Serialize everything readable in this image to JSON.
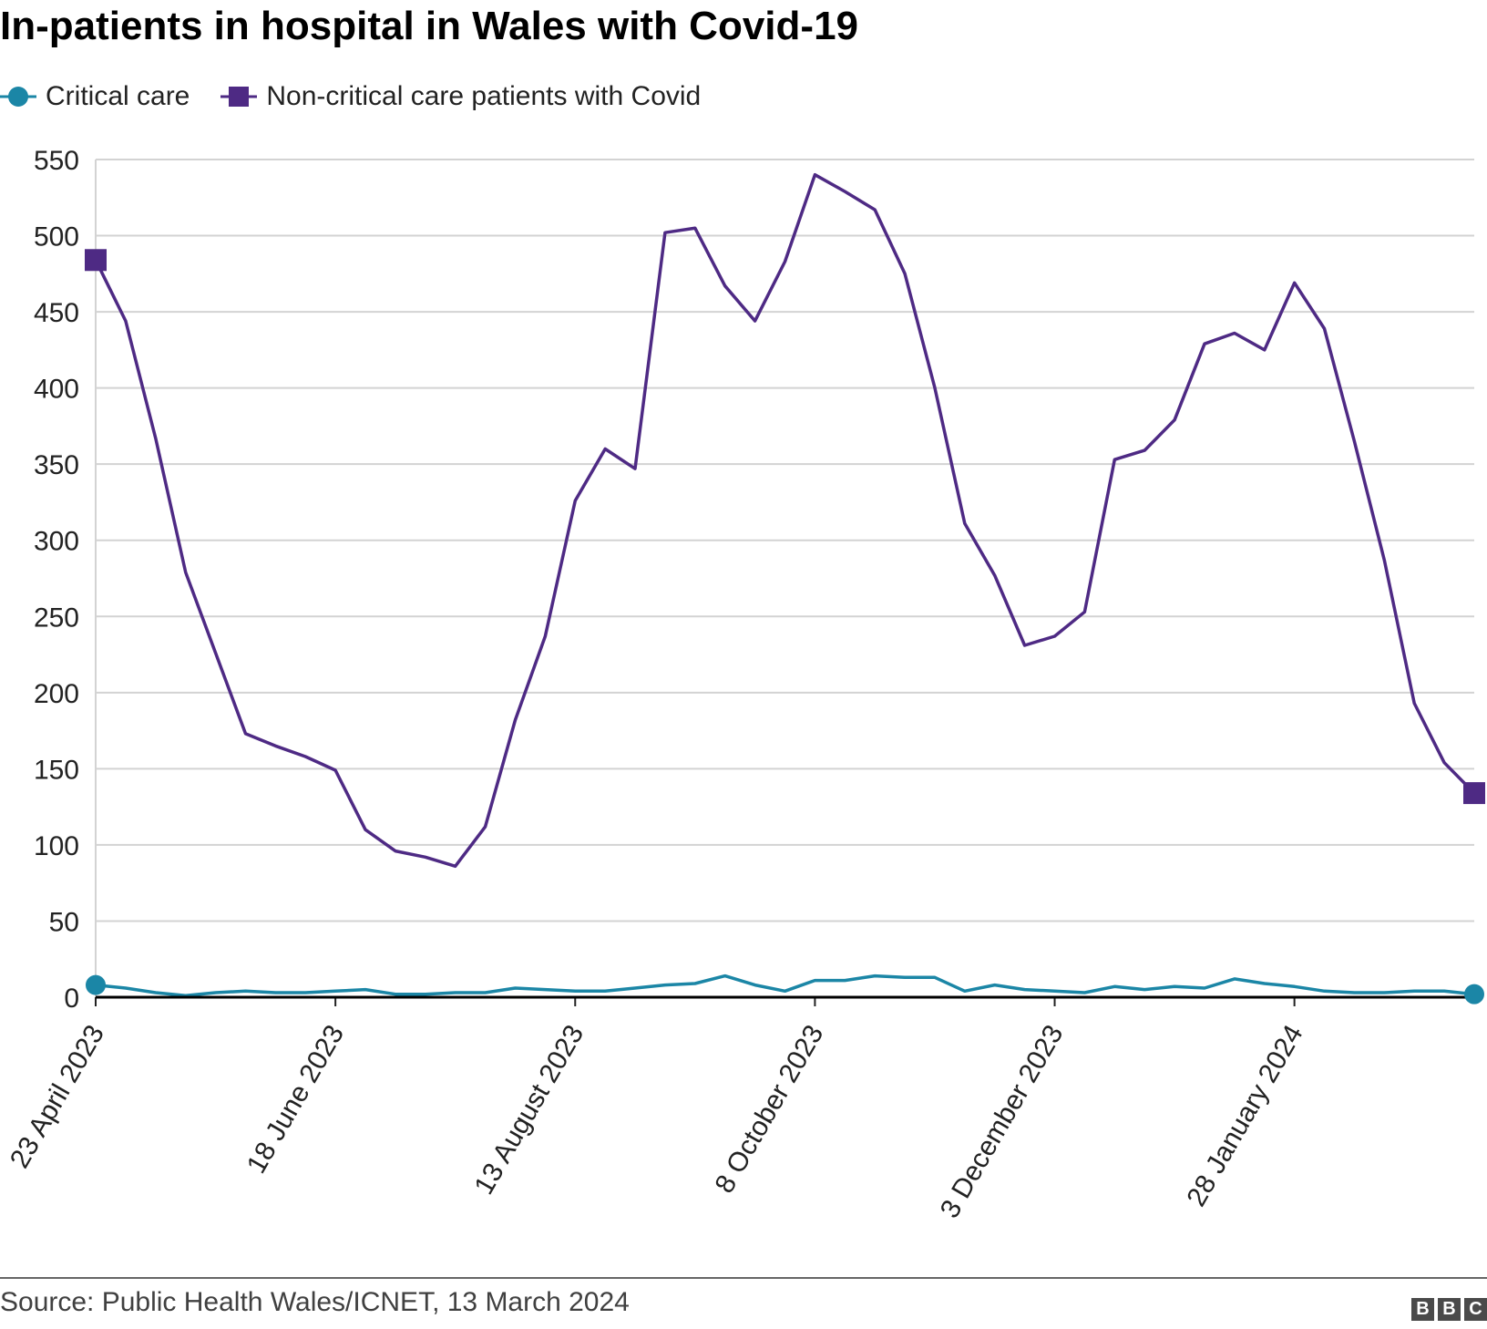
{
  "title": "In-patients in hospital in Wales with Covid-19",
  "legend": {
    "critical_label": "Critical care",
    "noncritical_label": "Non-critical care patients with Covid"
  },
  "source": "Source: Public Health Wales/ICNET, 13 March 2024",
  "logo": {
    "letters": [
      "B",
      "B",
      "C"
    ]
  },
  "chart_data": {
    "type": "line",
    "title": "In-patients in hospital in Wales with Covid-19",
    "xlabel": "",
    "ylabel": "",
    "ylim": [
      0,
      550
    ],
    "yticks": [
      0,
      50,
      100,
      150,
      200,
      250,
      300,
      350,
      400,
      450,
      500,
      550
    ],
    "grid": true,
    "legend_position": "top-left",
    "x_start": "23 April 2023",
    "x_interval": "weekly",
    "x": [
      "2023-04-23",
      "2023-04-30",
      "2023-05-07",
      "2023-05-14",
      "2023-05-21",
      "2023-05-28",
      "2023-06-04",
      "2023-06-11",
      "2023-06-18",
      "2023-06-25",
      "2023-07-02",
      "2023-07-09",
      "2023-07-16",
      "2023-07-23",
      "2023-07-30",
      "2023-08-06",
      "2023-08-13",
      "2023-08-20",
      "2023-08-27",
      "2023-09-03",
      "2023-09-10",
      "2023-09-17",
      "2023-09-24",
      "2023-10-01",
      "2023-10-08",
      "2023-10-15",
      "2023-10-22",
      "2023-10-29",
      "2023-11-05",
      "2023-11-12",
      "2023-11-19",
      "2023-11-26",
      "2023-12-03",
      "2023-12-10",
      "2023-12-17",
      "2023-12-24",
      "2023-12-31",
      "2024-01-07",
      "2024-01-14",
      "2024-01-21",
      "2024-01-28",
      "2024-02-04",
      "2024-02-11",
      "2024-02-18",
      "2024-02-25",
      "2024-03-03",
      "2024-03-10"
    ],
    "x_tick_labels": [
      "23 April 2023",
      "18 June 2023",
      "13 August 2023",
      "8 October 2023",
      "3 December 2023",
      "28 January 2024"
    ],
    "x_tick_indices": [
      0,
      8,
      16,
      24,
      32,
      40
    ],
    "series": [
      {
        "name": "Critical care",
        "color": "#1b86a6",
        "marker": "circle",
        "values": [
          8,
          6,
          3,
          1,
          3,
          4,
          3,
          3,
          4,
          5,
          2,
          2,
          3,
          3,
          6,
          5,
          4,
          4,
          6,
          8,
          9,
          14,
          8,
          4,
          11,
          11,
          14,
          13,
          13,
          4,
          8,
          5,
          4,
          3,
          7,
          5,
          7,
          6,
          12,
          9,
          7,
          4,
          3,
          3,
          4,
          4,
          2
        ]
      },
      {
        "name": "Non-critical care patients with Covid",
        "color": "#4e2a84",
        "marker": "square",
        "values": [
          484,
          444,
          367,
          279,
          226,
          173,
          165,
          158,
          149,
          110,
          96,
          92,
          86,
          112,
          182,
          237,
          326,
          360,
          347,
          502,
          505,
          467,
          444,
          483,
          540,
          529,
          517,
          475,
          400,
          311,
          277,
          231,
          237,
          253,
          353,
          359,
          379,
          429,
          436,
          425,
          469,
          439,
          365,
          287,
          193,
          154,
          134
        ]
      }
    ]
  }
}
